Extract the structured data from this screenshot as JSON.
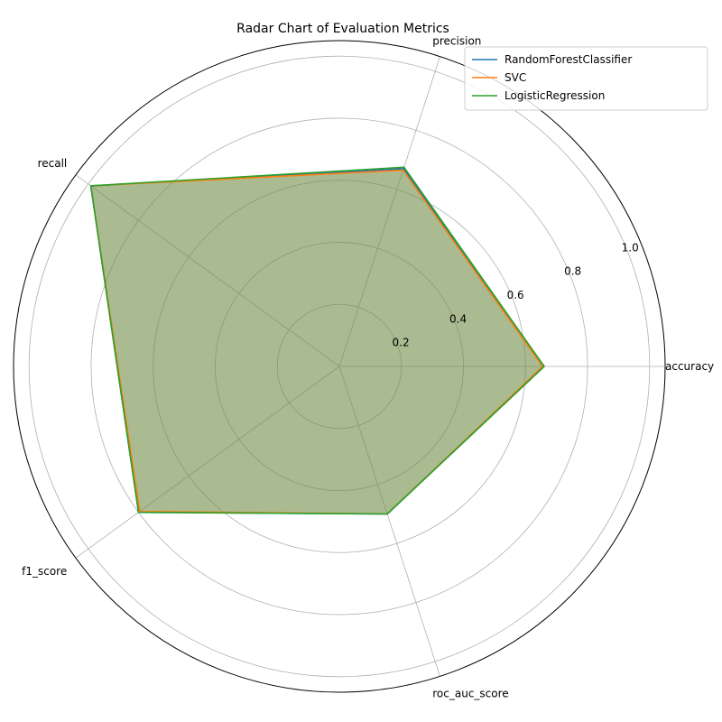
{
  "chart_data": {
    "type": "radar",
    "title": "Radar Chart of Evaluation Metrics",
    "categories": [
      "accuracy",
      "precision",
      "recall",
      "f1_score",
      "roc_auc_score"
    ],
    "radial_ticks": [
      "0.2",
      "0.4",
      "0.6",
      "0.8",
      "1.0"
    ],
    "rlim": [
      0,
      1.05
    ],
    "grid": true,
    "legend_position": "top-right",
    "series": [
      {
        "name": "RandomForestClassifier",
        "color": "#1f77b4",
        "values": [
          0.66,
          0.67,
          0.99,
          0.8,
          0.5
        ]
      },
      {
        "name": "SVC",
        "color": "#ff7f0e",
        "values": [
          0.655,
          0.665,
          0.99,
          0.795,
          0.5
        ]
      },
      {
        "name": "LogisticRegression",
        "color": "#2ca02c",
        "values": [
          0.66,
          0.675,
          0.99,
          0.8,
          0.5
        ]
      }
    ]
  }
}
